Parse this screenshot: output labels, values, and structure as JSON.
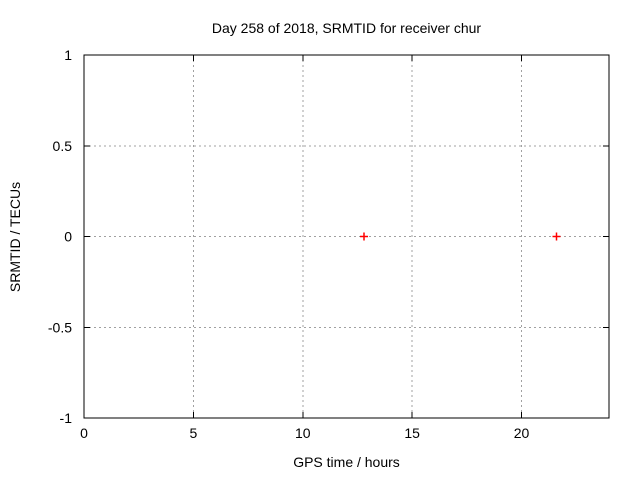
{
  "chart_data": {
    "type": "scatter",
    "title": "Day 258 of 2018, SRMTID for receiver chur",
    "xlabel": "GPS time / hours",
    "ylabel": "SRMTID / TECUs",
    "xlim": [
      0,
      24
    ],
    "ylim": [
      -1,
      1
    ],
    "xticks": [
      0,
      5,
      10,
      15,
      20
    ],
    "xtick_labels": [
      "0",
      "5",
      "10",
      "15",
      "20"
    ],
    "yticks": [
      -1,
      -0.5,
      0,
      0.5,
      1
    ],
    "ytick_labels": [
      "-1",
      "-0.5",
      "0",
      "0.5",
      "1"
    ],
    "grid": true,
    "legend": "none",
    "series": [
      {
        "name": "SRMTID",
        "marker": "plus",
        "color": "#ff0000",
        "points": [
          {
            "x": 12.8,
            "y": 0
          },
          {
            "x": 21.6,
            "y": 0
          }
        ]
      }
    ],
    "colors": {
      "marker": "#ff0000",
      "grid": "#a0a0a0",
      "axis": "#000000",
      "background": "#ffffff"
    }
  }
}
